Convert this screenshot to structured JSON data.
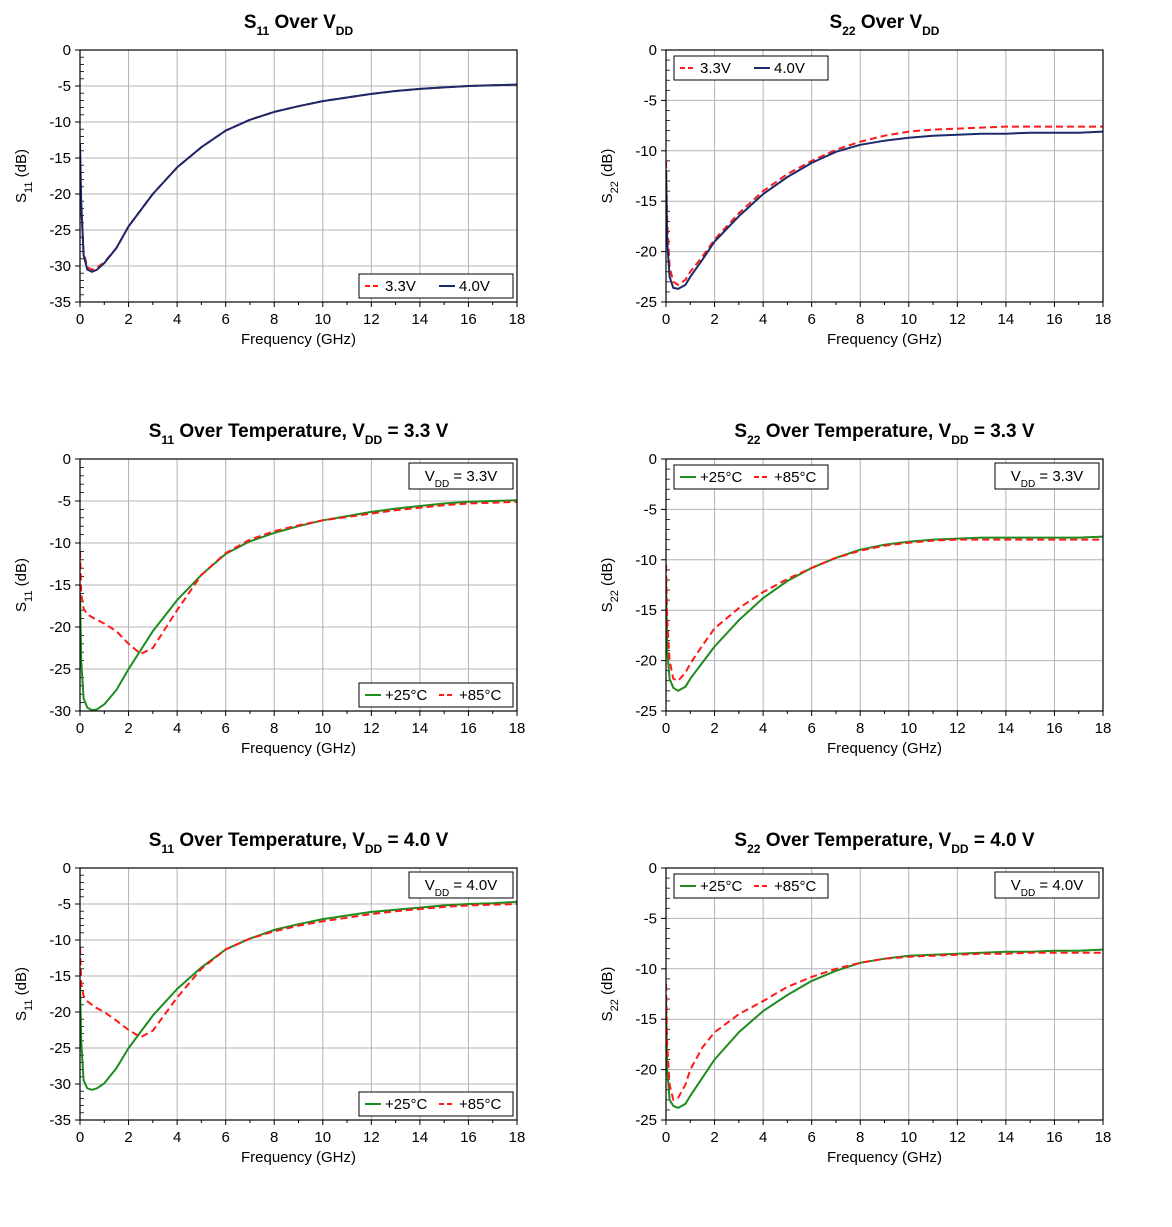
{
  "colors": {
    "red": "#ff1a1a",
    "navy": "#1a2a6b",
    "green": "#1e8c1e",
    "grid": "#b4b4b4"
  },
  "chart_data": [
    {
      "type": "line",
      "title": {
        "main": "S",
        "sub": "11",
        "rest": " Over V",
        "sub2": "DD",
        "tail": ""
      },
      "xlabel": "Frequency (GHz)",
      "ylabel": {
        "main": "S",
        "sub": "11",
        "rest": " (dB)"
      },
      "xlim": [
        0,
        18
      ],
      "ylim": [
        -35,
        0
      ],
      "xticks": [
        0,
        2,
        4,
        6,
        8,
        10,
        12,
        14,
        16,
        18
      ],
      "yticks": [
        0,
        -5,
        -10,
        -15,
        -20,
        -25,
        -30,
        -35
      ],
      "grid": true,
      "legend_position": "bottom-right",
      "series": [
        {
          "name": "3.3V",
          "color": "#ff1a1a",
          "dashed": true,
          "x": [
            0,
            0.05,
            0.15,
            0.3,
            0.5,
            0.7,
            1,
            1.5,
            2,
            3,
            4,
            5,
            6,
            7,
            8,
            9,
            10,
            11,
            12,
            13,
            14,
            15,
            16,
            17,
            18
          ],
          "y": [
            -15,
            -22,
            -28,
            -30.2,
            -30.5,
            -30.2,
            -29.5,
            -27.5,
            -24.5,
            -20,
            -16.3,
            -13.5,
            -11.2,
            -9.7,
            -8.6,
            -7.8,
            -7.1,
            -6.6,
            -6.1,
            -5.7,
            -5.4,
            -5.2,
            -5.0,
            -4.9,
            -4.8
          ]
        },
        {
          "name": "4.0V",
          "color": "#1a2a6b",
          "dashed": false,
          "x": [
            0,
            0.05,
            0.15,
            0.3,
            0.5,
            0.7,
            1,
            1.5,
            2,
            3,
            4,
            5,
            6,
            7,
            8,
            9,
            10,
            11,
            12,
            13,
            14,
            15,
            16,
            17,
            18
          ],
          "y": [
            -13,
            -21,
            -28.5,
            -30.5,
            -30.8,
            -30.5,
            -29.6,
            -27.5,
            -24.5,
            -20,
            -16.3,
            -13.5,
            -11.2,
            -9.7,
            -8.6,
            -7.8,
            -7.1,
            -6.6,
            -6.1,
            -5.7,
            -5.4,
            -5.2,
            -5.0,
            -4.9,
            -4.8
          ]
        }
      ]
    },
    {
      "type": "line",
      "title": {
        "main": "S",
        "sub": "22",
        "rest": " Over V",
        "sub2": "DD",
        "tail": ""
      },
      "xlabel": "Frequency (GHz)",
      "ylabel": {
        "main": "S",
        "sub": "22",
        "rest": " (dB)"
      },
      "xlim": [
        0,
        18
      ],
      "ylim": [
        -25,
        0
      ],
      "xticks": [
        0,
        2,
        4,
        6,
        8,
        10,
        12,
        14,
        16,
        18
      ],
      "yticks": [
        0,
        -5,
        -10,
        -15,
        -20,
        -25
      ],
      "grid": true,
      "legend_position": "top-left",
      "series": [
        {
          "name": "3.3V",
          "color": "#ff1a1a",
          "dashed": true,
          "x": [
            0,
            0.05,
            0.15,
            0.3,
            0.5,
            0.8,
            1,
            1.5,
            2,
            3,
            4,
            5,
            6,
            7,
            8,
            9,
            10,
            11,
            12,
            13,
            14,
            15,
            16,
            17,
            18
          ],
          "y": [
            -11,
            -17,
            -21.5,
            -23,
            -23.3,
            -22.8,
            -22,
            -20.5,
            -18.8,
            -16.2,
            -14,
            -12.3,
            -11,
            -9.9,
            -9.1,
            -8.5,
            -8.1,
            -7.9,
            -7.8,
            -7.7,
            -7.6,
            -7.6,
            -7.6,
            -7.6,
            -7.6
          ]
        },
        {
          "name": "4.0V",
          "color": "#1a2a6b",
          "dashed": false,
          "x": [
            0,
            0.05,
            0.15,
            0.3,
            0.5,
            0.8,
            1,
            1.5,
            2,
            3,
            4,
            5,
            6,
            7,
            8,
            9,
            10,
            11,
            12,
            13,
            14,
            15,
            16,
            17,
            18
          ],
          "y": [
            -12,
            -19,
            -22.5,
            -23.6,
            -23.7,
            -23.3,
            -22.5,
            -20.8,
            -19,
            -16.5,
            -14.3,
            -12.6,
            -11.2,
            -10.1,
            -9.4,
            -9,
            -8.7,
            -8.5,
            -8.4,
            -8.3,
            -8.3,
            -8.2,
            -8.2,
            -8.2,
            -8.1
          ]
        }
      ]
    },
    {
      "type": "line",
      "title": {
        "main": "S",
        "sub": "11",
        "rest": " Over Temperature, V",
        "sub2": "DD",
        "tail": " = 3.3 V"
      },
      "xlabel": "Frequency (GHz)",
      "ylabel": {
        "main": "S",
        "sub": "11",
        "rest": " (dB)"
      },
      "xlim": [
        0,
        18
      ],
      "ylim": [
        -30,
        0
      ],
      "xticks": [
        0,
        2,
        4,
        6,
        8,
        10,
        12,
        14,
        16,
        18
      ],
      "yticks": [
        0,
        -5,
        -10,
        -15,
        -20,
        -25,
        -30
      ],
      "grid": true,
      "legend_position": "bottom-right",
      "note": {
        "main": "V",
        "sub": "DD",
        "rest": " = 3.3V"
      },
      "series": [
        {
          "name": "+25°C",
          "color": "#1e8c1e",
          "dashed": false,
          "x": [
            0,
            0.05,
            0.15,
            0.3,
            0.5,
            0.7,
            1,
            1.5,
            2,
            3,
            4,
            5,
            6,
            7,
            8,
            9,
            10,
            11,
            12,
            13,
            14,
            15,
            16,
            17,
            18
          ],
          "y": [
            -16,
            -24,
            -28.5,
            -29.6,
            -29.9,
            -29.8,
            -29.2,
            -27.5,
            -25,
            -20.5,
            -16.8,
            -13.8,
            -11.3,
            -9.8,
            -8.8,
            -8,
            -7.3,
            -6.8,
            -6.3,
            -5.9,
            -5.6,
            -5.3,
            -5.1,
            -5.0,
            -4.9
          ]
        },
        {
          "name": "+85°C",
          "color": "#ff1a1a",
          "dashed": true,
          "x": [
            0,
            0.05,
            0.15,
            0.3,
            0.6,
            1,
            1.5,
            2,
            2.5,
            3,
            4,
            5,
            6,
            7,
            8,
            9,
            10,
            11,
            12,
            13,
            14,
            15,
            16,
            17,
            18
          ],
          "y": [
            -11,
            -16,
            -17.8,
            -18.5,
            -19,
            -19.6,
            -20.5,
            -22,
            -23.2,
            -22.5,
            -18,
            -13.8,
            -11.2,
            -9.6,
            -8.6,
            -7.9,
            -7.3,
            -6.9,
            -6.5,
            -6.1,
            -5.8,
            -5.5,
            -5.3,
            -5.2,
            -5.1
          ]
        }
      ]
    },
    {
      "type": "line",
      "title": {
        "main": "S",
        "sub": "22",
        "rest": " Over Temperature, V",
        "sub2": "DD",
        "tail": " = 3.3 V"
      },
      "xlabel": "Frequency (GHz)",
      "ylabel": {
        "main": "S",
        "sub": "22",
        "rest": " (dB)"
      },
      "xlim": [
        0,
        18
      ],
      "ylim": [
        -25,
        0
      ],
      "xticks": [
        0,
        2,
        4,
        6,
        8,
        10,
        12,
        14,
        16,
        18
      ],
      "yticks": [
        0,
        -5,
        -10,
        -15,
        -20,
        -25
      ],
      "grid": true,
      "legend_position": "top-left",
      "note": {
        "main": "V",
        "sub": "DD",
        "rest": " = 3.3V"
      },
      "series": [
        {
          "name": "+25°C",
          "color": "#1e8c1e",
          "dashed": false,
          "x": [
            0,
            0.05,
            0.15,
            0.3,
            0.5,
            0.8,
            1,
            1.5,
            2,
            3,
            4,
            5,
            6,
            7,
            8,
            9,
            10,
            11,
            12,
            13,
            14,
            15,
            16,
            17,
            18
          ],
          "y": [
            -12,
            -19,
            -21.8,
            -22.7,
            -23,
            -22.6,
            -21.8,
            -20.2,
            -18.6,
            -16,
            -13.8,
            -12.1,
            -10.8,
            -9.8,
            -9,
            -8.5,
            -8.2,
            -8,
            -7.9,
            -7.8,
            -7.8,
            -7.8,
            -7.8,
            -7.8,
            -7.7
          ]
        },
        {
          "name": "+85°C",
          "color": "#ff1a1a",
          "dashed": true,
          "x": [
            0,
            0.05,
            0.15,
            0.3,
            0.5,
            0.8,
            1,
            1.5,
            2,
            3,
            4,
            5,
            6,
            7,
            8,
            9,
            10,
            11,
            12,
            13,
            14,
            15,
            16,
            17,
            18
          ],
          "y": [
            -10.5,
            -16,
            -20,
            -21.8,
            -22,
            -21.2,
            -20.3,
            -18.5,
            -16.8,
            -14.8,
            -13.2,
            -11.9,
            -10.8,
            -9.8,
            -9.1,
            -8.6,
            -8.3,
            -8.1,
            -8,
            -8,
            -8,
            -8,
            -8,
            -8,
            -8
          ]
        }
      ]
    },
    {
      "type": "line",
      "title": {
        "main": "S",
        "sub": "11",
        "rest": " Over Temperature, V",
        "sub2": "DD",
        "tail": " = 4.0 V"
      },
      "xlabel": "Frequency (GHz)",
      "ylabel": {
        "main": "S",
        "sub": "11",
        "rest": " (dB)"
      },
      "xlim": [
        0,
        18
      ],
      "ylim": [
        -35,
        0
      ],
      "xticks": [
        0,
        2,
        4,
        6,
        8,
        10,
        12,
        14,
        16,
        18
      ],
      "yticks": [
        0,
        -5,
        -10,
        -15,
        -20,
        -25,
        -30,
        -35
      ],
      "grid": true,
      "legend_position": "bottom-right",
      "note": {
        "main": "V",
        "sub": "DD",
        "rest": " = 4.0V"
      },
      "series": [
        {
          "name": "+25°C",
          "color": "#1e8c1e",
          "dashed": false,
          "x": [
            0,
            0.05,
            0.15,
            0.3,
            0.5,
            0.7,
            1,
            1.5,
            2,
            3,
            4,
            5,
            6,
            7,
            8,
            9,
            10,
            11,
            12,
            13,
            14,
            15,
            16,
            17,
            18
          ],
          "y": [
            -16,
            -24,
            -29.5,
            -30.6,
            -30.8,
            -30.6,
            -29.9,
            -27.8,
            -25,
            -20.5,
            -16.8,
            -13.8,
            -11.3,
            -9.8,
            -8.6,
            -7.8,
            -7.1,
            -6.6,
            -6.1,
            -5.8,
            -5.5,
            -5.2,
            -5.0,
            -4.9,
            -4.7
          ]
        },
        {
          "name": "+85°C",
          "color": "#ff1a1a",
          "dashed": true,
          "x": [
            0,
            0.05,
            0.15,
            0.3,
            0.6,
            1,
            1.5,
            2,
            2.5,
            3,
            4,
            5,
            6,
            7,
            8,
            9,
            10,
            11,
            12,
            13,
            14,
            15,
            16,
            17,
            18
          ],
          "y": [
            -11,
            -16,
            -17.8,
            -18.5,
            -19.3,
            -20,
            -21.2,
            -22.5,
            -23.5,
            -22.6,
            -18,
            -14,
            -11.3,
            -9.8,
            -8.8,
            -8,
            -7.4,
            -6.9,
            -6.4,
            -6,
            -5.7,
            -5.4,
            -5.2,
            -5.1,
            -5.0
          ]
        }
      ]
    },
    {
      "type": "line",
      "title": {
        "main": "S",
        "sub": "22",
        "rest": " Over Temperature, V",
        "sub2": "DD",
        "tail": " = 4.0 V"
      },
      "xlabel": "Frequency (GHz)",
      "ylabel": {
        "main": "S",
        "sub": "22",
        "rest": " (dB)"
      },
      "xlim": [
        0,
        18
      ],
      "ylim": [
        -25,
        0
      ],
      "xticks": [
        0,
        2,
        4,
        6,
        8,
        10,
        12,
        14,
        16,
        18
      ],
      "yticks": [
        0,
        -5,
        -10,
        -15,
        -20,
        -25
      ],
      "grid": true,
      "legend_position": "top-left",
      "note": {
        "main": "V",
        "sub": "DD",
        "rest": " = 4.0V"
      },
      "series": [
        {
          "name": "+25°C",
          "color": "#1e8c1e",
          "dashed": false,
          "x": [
            0,
            0.05,
            0.15,
            0.3,
            0.5,
            0.8,
            1,
            1.5,
            2,
            3,
            4,
            5,
            6,
            7,
            8,
            9,
            10,
            11,
            12,
            13,
            14,
            15,
            16,
            17,
            18
          ],
          "y": [
            -13,
            -20,
            -23,
            -23.6,
            -23.8,
            -23.4,
            -22.6,
            -20.8,
            -19,
            -16.3,
            -14.2,
            -12.6,
            -11.2,
            -10.2,
            -9.4,
            -9,
            -8.7,
            -8.6,
            -8.5,
            -8.4,
            -8.3,
            -8.3,
            -8.2,
            -8.2,
            -8.1
          ]
        },
        {
          "name": "+85°C",
          "color": "#ff1a1a",
          "dashed": true,
          "x": [
            0,
            0.05,
            0.15,
            0.3,
            0.5,
            0.8,
            1,
            1.5,
            2,
            3,
            4,
            5,
            6,
            7,
            8,
            9,
            10,
            11,
            12,
            13,
            14,
            15,
            16,
            17,
            18
          ],
          "y": [
            -11.5,
            -17.5,
            -21.5,
            -23,
            -22.8,
            -21.5,
            -20,
            -17.8,
            -16.3,
            -14.5,
            -13.2,
            -11.8,
            -10.8,
            -10,
            -9.4,
            -9,
            -8.8,
            -8.7,
            -8.6,
            -8.5,
            -8.5,
            -8.4,
            -8.4,
            -8.4,
            -8.4
          ]
        }
      ]
    }
  ]
}
